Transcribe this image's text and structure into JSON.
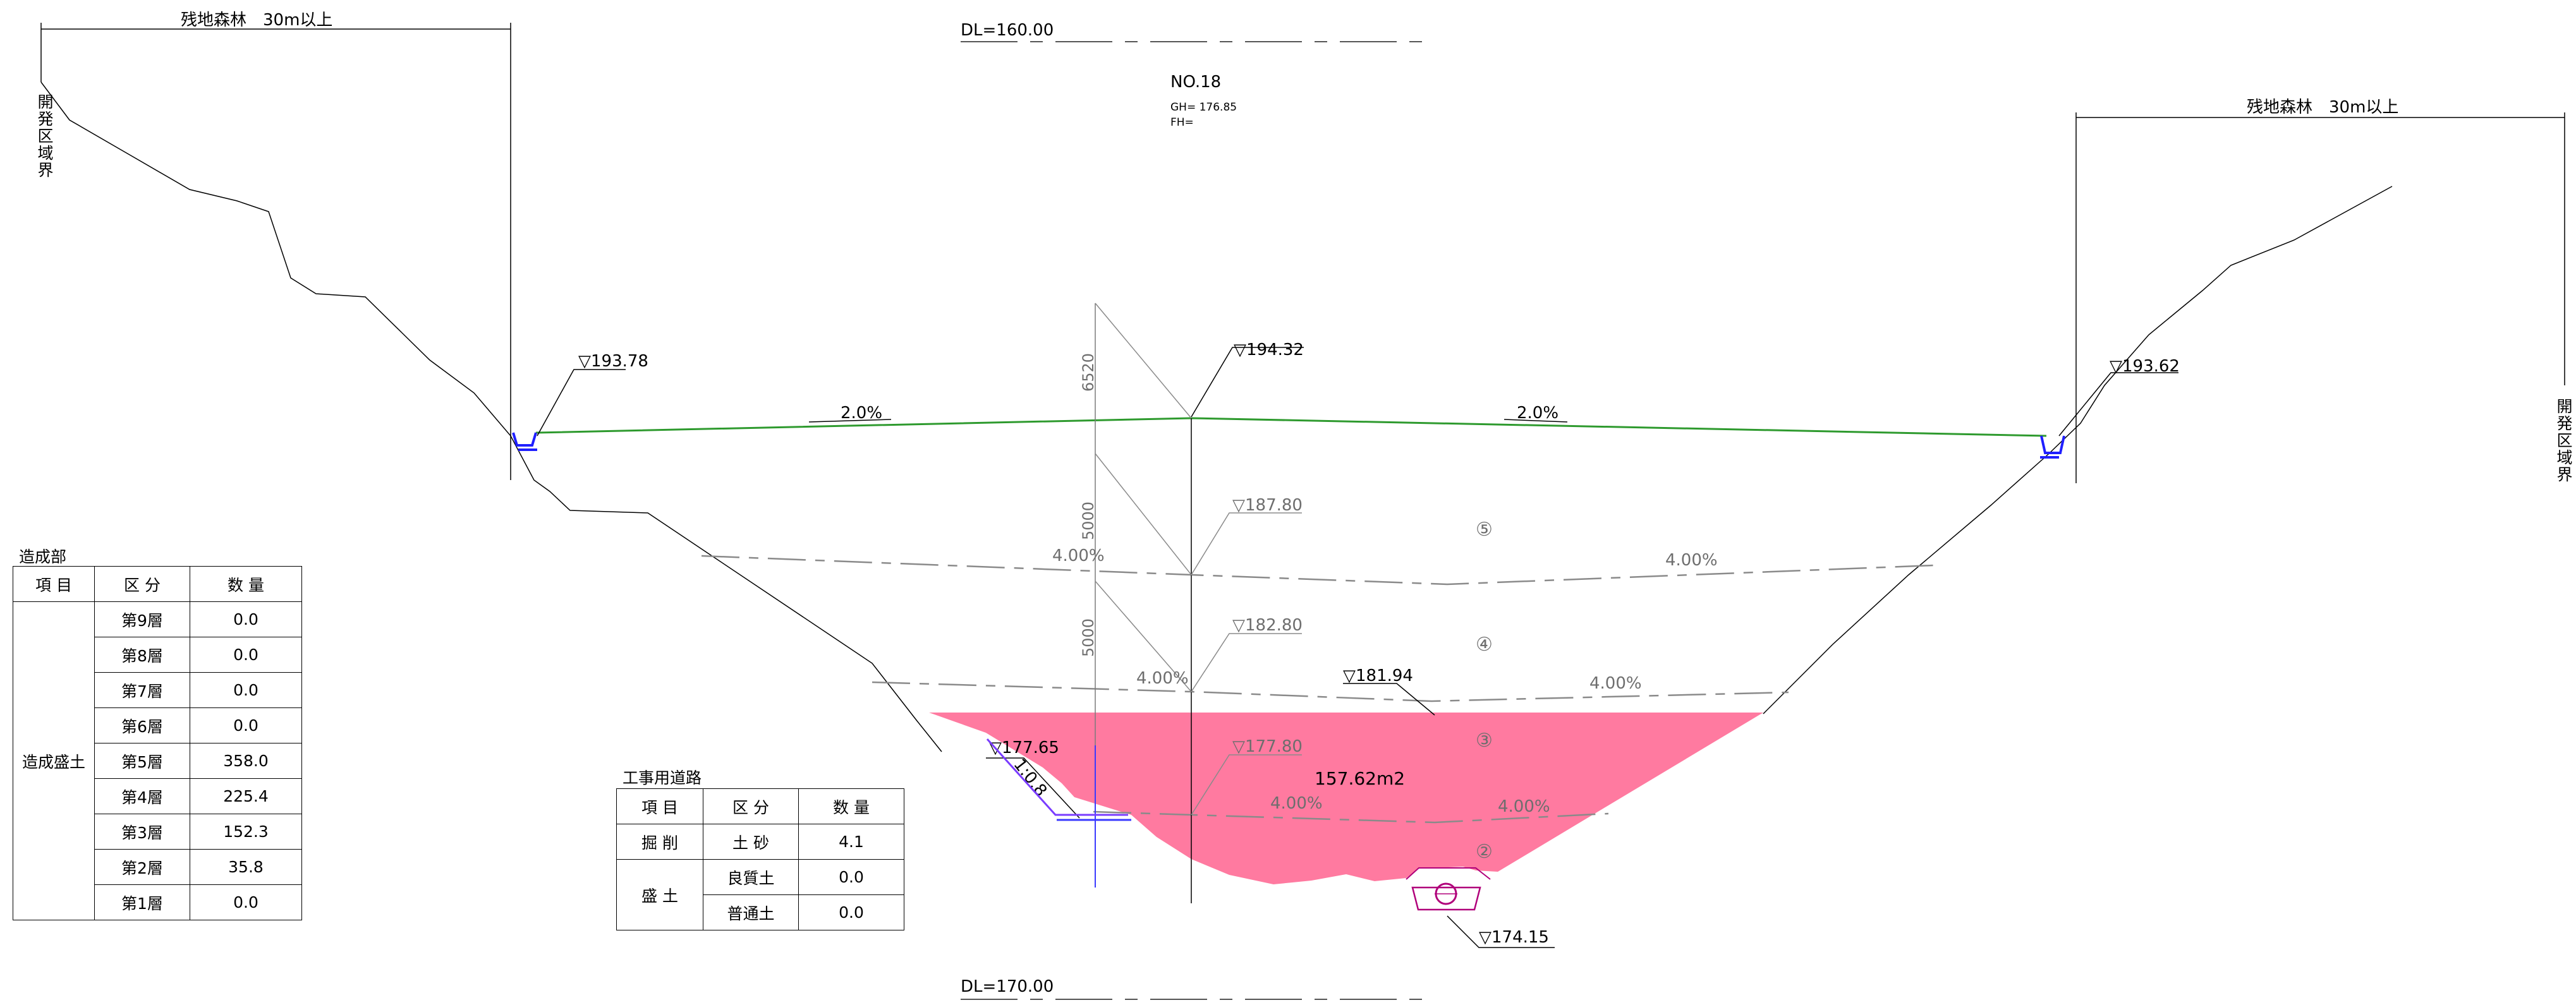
{
  "datum": {
    "top": "DL=160.00",
    "bottom": "DL=170.00"
  },
  "station": {
    "name": "NO.18",
    "gh": "GH= 176.85",
    "fh": "FH="
  },
  "forest": {
    "left": "残地森林　30m以上",
    "right": "残地森林　30m以上"
  },
  "boundary": {
    "left": "開発区域界",
    "right": "開発区域界"
  },
  "elevations": {
    "left_crown": "▽193.78",
    "center_crown": "▽194.32",
    "right_crown": "▽193.62",
    "layer5": "▽187.80",
    "layer4": "▽182.80",
    "layer3": "▽181.94",
    "road": "▽177.65",
    "layer2": "▽177.80",
    "pipe": "▽174.15"
  },
  "slopes": {
    "top_left": "2.0%",
    "top_right": "2.0%",
    "l5_left": "4.00%",
    "l5_right": "4.00%",
    "l4_left": "4.00%",
    "l4_right": "4.00%",
    "l2_left": "4.00%",
    "l2_right": "4.00%",
    "road_slope": "1:0.8"
  },
  "dims": {
    "d1": "6520",
    "d2": "5000",
    "d3": "5000"
  },
  "layer_marks": {
    "m5": "⑤",
    "m4": "④",
    "m3": "③",
    "m2": "②"
  },
  "area": "157.62m2",
  "colors": {
    "fill": "#ff7aa0",
    "crown": "#2e9a2e",
    "ditch": "#1f1fff",
    "pipe": "#b0007a",
    "road": "#7a3cff"
  },
  "zousei": {
    "title": "造成部",
    "headers": [
      "項 目",
      "区 分",
      "数 量"
    ],
    "group": "造成盛土",
    "rows": [
      {
        "label": "第9層",
        "value": "0.0"
      },
      {
        "label": "第8層",
        "value": "0.0"
      },
      {
        "label": "第7層",
        "value": "0.0"
      },
      {
        "label": "第6層",
        "value": "0.0"
      },
      {
        "label": "第5層",
        "value": "358.0"
      },
      {
        "label": "第4層",
        "value": "225.4"
      },
      {
        "label": "第3層",
        "value": "152.3"
      },
      {
        "label": "第2層",
        "value": "35.8"
      },
      {
        "label": "第1層",
        "value": "0.0"
      }
    ]
  },
  "road_table": {
    "title": "工事用道路",
    "headers": [
      "項 目",
      "区 分",
      "数 量"
    ],
    "cut": {
      "item": "掘 削",
      "kind": "土 砂",
      "value": "4.1"
    },
    "fill_item": "盛 土",
    "fill_rows": [
      {
        "kind": "良質土",
        "value": "0.0"
      },
      {
        "kind": "普通土",
        "value": "0.0"
      }
    ]
  }
}
